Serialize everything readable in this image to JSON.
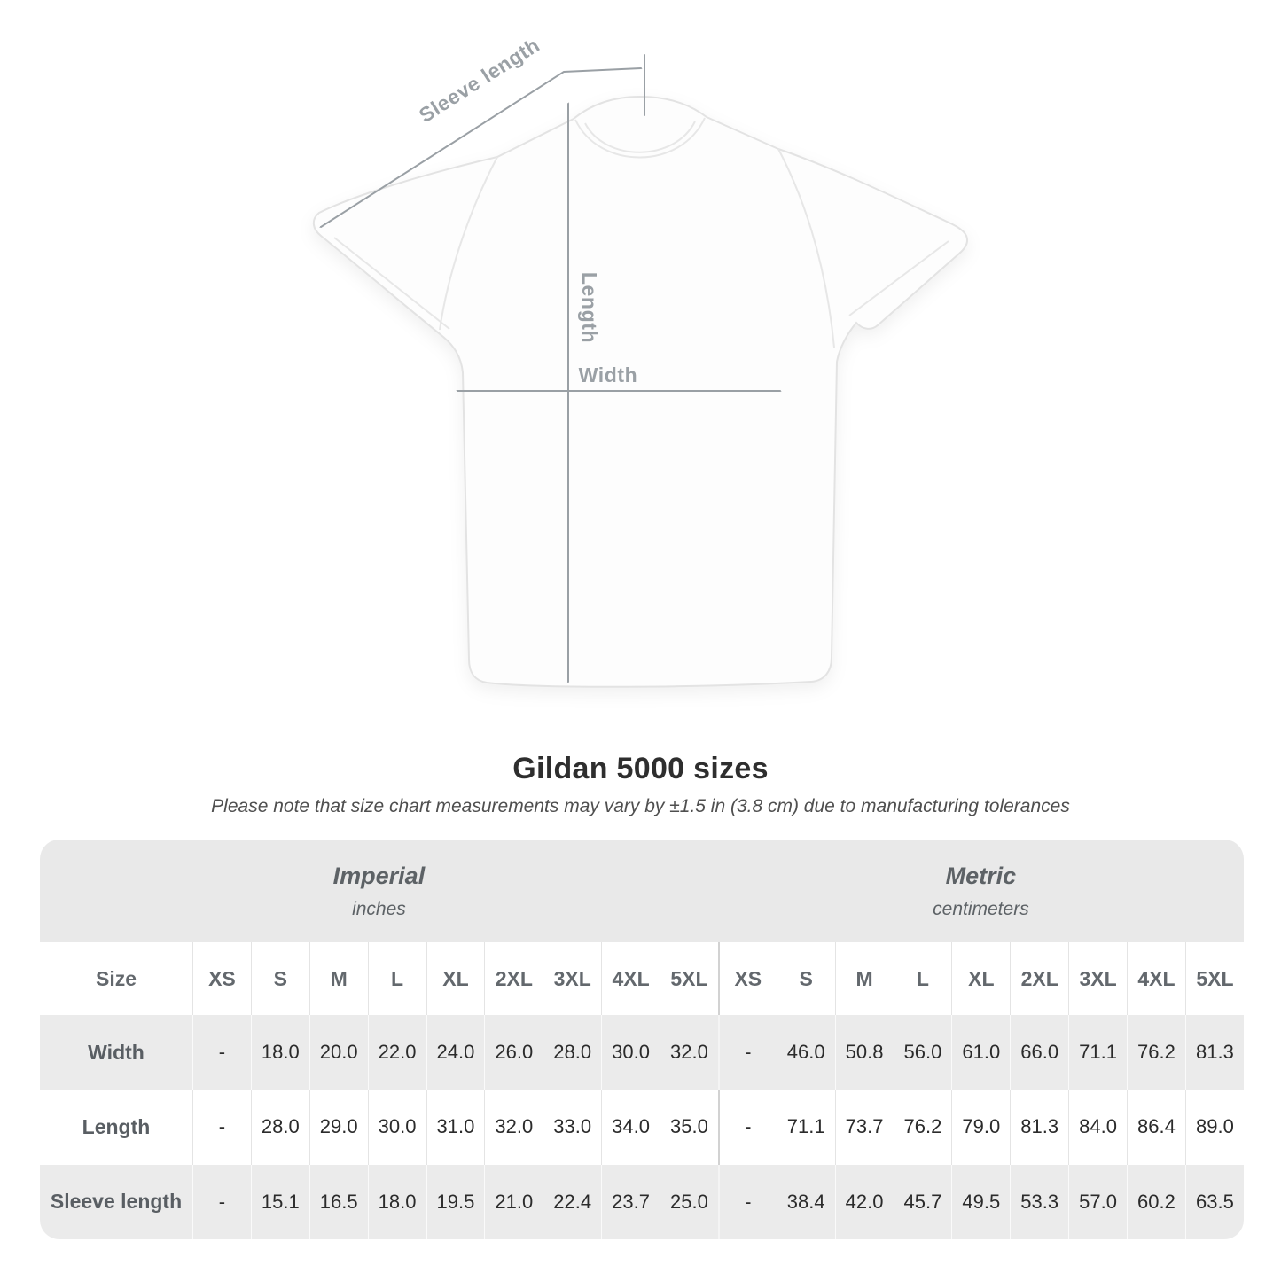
{
  "figure": {
    "labels": {
      "sleeve_length": "Sleeve length",
      "length": "Length",
      "width": "Width"
    },
    "annotation_color": "#9aa0a5"
  },
  "heading": {
    "title": "Gildan 5000 sizes",
    "subtitle": "Please note that size chart measurements may vary by ±1.5 in (3.8 cm) due to manufacturing tolerances"
  },
  "size_chart": {
    "corner_header": "Size",
    "unit_groups": [
      {
        "label": "Imperial",
        "sublabel": "inches"
      },
      {
        "label": "Metric",
        "sublabel": "centimeters"
      }
    ],
    "sizes": [
      "XS",
      "S",
      "M",
      "L",
      "XL",
      "2XL",
      "3XL",
      "4XL",
      "5XL"
    ],
    "rows": [
      {
        "label": "Width",
        "imperial": [
          "-",
          "18.0",
          "20.0",
          "22.0",
          "24.0",
          "26.0",
          "28.0",
          "30.0",
          "32.0"
        ],
        "metric": [
          "-",
          "46.0",
          "50.8",
          "56.0",
          "61.0",
          "66.0",
          "71.1",
          "76.2",
          "81.3"
        ]
      },
      {
        "label": "Length",
        "imperial": [
          "-",
          "28.0",
          "29.0",
          "30.0",
          "31.0",
          "32.0",
          "33.0",
          "34.0",
          "35.0"
        ],
        "metric": [
          "-",
          "71.1",
          "73.7",
          "76.2",
          "79.0",
          "81.3",
          "84.0",
          "86.4",
          "89.0"
        ]
      },
      {
        "label": "Sleeve length",
        "imperial": [
          "-",
          "15.1",
          "16.5",
          "18.0",
          "19.5",
          "21.0",
          "22.4",
          "23.7",
          "25.0"
        ],
        "metric": [
          "-",
          "38.4",
          "42.0",
          "45.7",
          "49.5",
          "53.3",
          "57.0",
          "60.2",
          "63.5"
        ]
      }
    ],
    "colors": {
      "band_bg": "#e9e9e9",
      "stripe_bg": "#ebebeb",
      "divider": "#d2d2d2"
    }
  }
}
